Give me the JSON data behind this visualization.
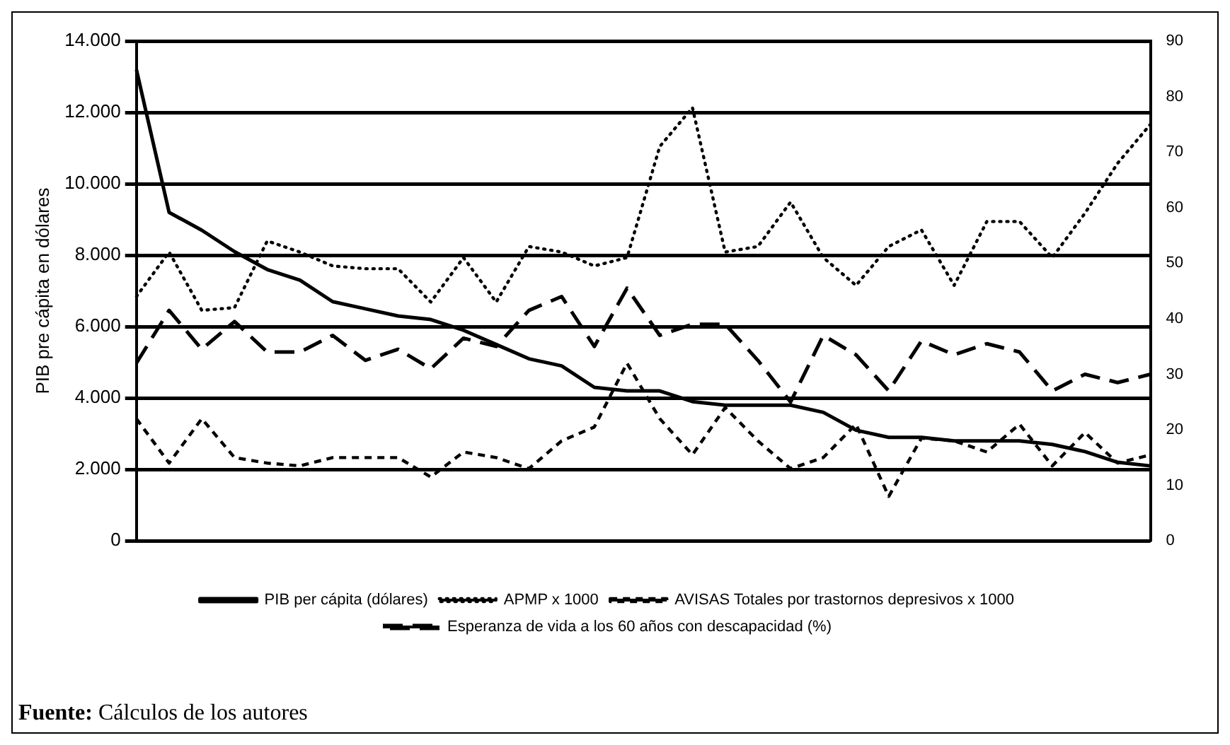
{
  "chart_data": {
    "type": "line",
    "ylabel": "PIB pre cápita en dólares",
    "categories": [
      null,
      null,
      null,
      null,
      null,
      null,
      null,
      null,
      null,
      null,
      null,
      null,
      null,
      null,
      null,
      null,
      null,
      null,
      null,
      null,
      null,
      null,
      null,
      null,
      null,
      null,
      null,
      null,
      null,
      null,
      null,
      null
    ],
    "ylim": [
      0,
      14000
    ],
    "yticks": [
      {
        "value": 0,
        "label": "0"
      },
      {
        "value": 2000,
        "label": "2.000"
      },
      {
        "value": 4000,
        "label": "4.000"
      },
      {
        "value": 6000,
        "label": "6.000"
      },
      {
        "value": 8000,
        "label": "8.000"
      },
      {
        "value": 10000,
        "label": "10.000"
      },
      {
        "value": 12000,
        "label": "12.000"
      },
      {
        "value": 14000,
        "label": "14.000"
      }
    ],
    "y2lim": [
      0,
      90
    ],
    "y2ticks": [
      0,
      10,
      20,
      30,
      40,
      50,
      60,
      70,
      80,
      90
    ],
    "grid": "y",
    "legend": "bottom",
    "marker": "none",
    "series": [
      {
        "name": "PIB per cápita (dólares)",
        "color": "#000000",
        "line_style": "solid",
        "axis": "y",
        "values": [
          13200,
          9200,
          8700,
          8100,
          7600,
          7300,
          6700,
          6500,
          6300,
          6200,
          5900,
          5500,
          5100,
          4900,
          4300,
          4200,
          4200,
          3900,
          3800,
          3800,
          3800,
          3600,
          3100,
          2900,
          2900,
          2800,
          2800,
          2800,
          2700,
          2500,
          2200,
          2100
        ]
      },
      {
        "name": "APMP x 1000",
        "color": "#000000",
        "line_style": "dotted",
        "axis": "y2",
        "values": [
          44,
          52,
          41.5,
          42,
          54,
          52,
          49.5,
          49,
          49,
          43,
          51,
          43,
          53,
          52,
          49.5,
          51,
          71,
          78,
          52,
          53,
          61,
          51,
          46,
          53,
          56,
          46,
          57.5,
          57.5,
          51,
          59,
          68,
          75
        ]
      },
      {
        "name": "AVISAS Totales por trastornos depresivos x 1000",
        "color": "#000000",
        "line_style": "dashed",
        "axis": "y2",
        "values": [
          22,
          14,
          22,
          15,
          14,
          13.5,
          15,
          15,
          15,
          11.5,
          16,
          15,
          13,
          18,
          20.5,
          32,
          22,
          15.5,
          24,
          18,
          13,
          15,
          21,
          8,
          18.5,
          18,
          16,
          21,
          13.5,
          19.5,
          14,
          15.5
        ]
      },
      {
        "name": "Esperanza de vida a los 60 años con descapacidad (%)",
        "color": "#000000",
        "line_style": "longdash",
        "axis": "y2",
        "values": [
          32,
          41.5,
          34.5,
          39.5,
          34,
          34,
          37,
          32.5,
          34.5,
          31,
          36.5,
          35,
          41.5,
          44,
          35,
          45.5,
          37,
          39,
          39,
          32.5,
          25,
          37,
          33.5,
          27,
          36,
          33.5,
          35.5,
          34,
          27,
          30,
          28.5,
          30
        ]
      }
    ],
    "annotations": [
      "Fuente: Cálculos de los autores"
    ]
  }
}
